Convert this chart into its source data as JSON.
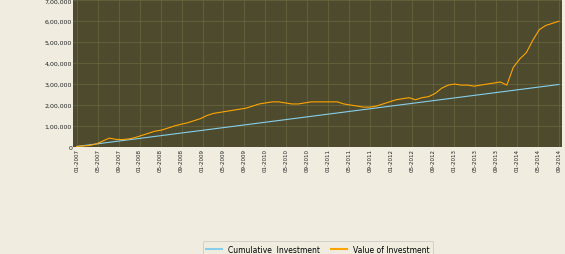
{
  "plot_bg_color": "#4d4a2e",
  "fig_bg_color": "#f0ede0",
  "grid_color": "#6b6840",
  "ylim": [
    0,
    700000
  ],
  "yticks": [
    0,
    100000,
    200000,
    300000,
    400000,
    500000,
    600000,
    700000
  ],
  "ytick_labels": [
    "0",
    "1,00,000",
    "2,00,000",
    "3,00,000",
    "4,00,000",
    "5,00,000",
    "6,00,000",
    "7,00,000"
  ],
  "xtick_labels": [
    "01-2007",
    "05-2007",
    "09-2007",
    "01-2008",
    "05-2008",
    "09-2008",
    "01-2009",
    "05-2009",
    "09-2009",
    "01-2010",
    "05-2010",
    "09-2010",
    "01-2011",
    "05-2011",
    "09-2011",
    "01-2012",
    "05-2012",
    "09-2012",
    "01-2013",
    "05-2013",
    "09-2013",
    "01-2014",
    "05-2014",
    "09-2014"
  ],
  "cumulative_color": "#87ceeb",
  "value_color": "#ffa500",
  "legend_bg": "#f0ede0",
  "cumulative_investment": [
    2000,
    6000,
    10000,
    14000,
    18000,
    22000,
    26000,
    30000,
    34000,
    38000,
    42000,
    46000,
    50000,
    54000,
    58000,
    62000,
    66000,
    70000,
    74000,
    78000,
    82000,
    86000,
    90000,
    94000,
    98000,
    102000,
    106000,
    110000,
    114000,
    118000,
    122000,
    126000,
    130000,
    134000,
    138000,
    142000,
    146000,
    150000,
    154000,
    158000,
    162000,
    166000,
    170000,
    174000,
    178000,
    182000,
    186000,
    190000,
    194000,
    198000,
    202000,
    206000,
    210000,
    214000,
    218000,
    222000,
    226000,
    230000,
    234000,
    238000,
    242000,
    246000,
    250000,
    254000,
    258000,
    262000,
    266000,
    270000,
    274000,
    278000,
    282000,
    286000,
    290000,
    294000,
    298000
  ],
  "value_of_investment": [
    2000,
    4500,
    7000,
    14000,
    28000,
    42000,
    36000,
    35000,
    38000,
    45000,
    55000,
    65000,
    75000,
    80000,
    90000,
    100000,
    108000,
    115000,
    125000,
    135000,
    150000,
    160000,
    165000,
    170000,
    175000,
    180000,
    185000,
    195000,
    205000,
    210000,
    215000,
    215000,
    210000,
    205000,
    205000,
    210000,
    215000,
    215000,
    215000,
    215000,
    215000,
    205000,
    200000,
    195000,
    190000,
    190000,
    195000,
    205000,
    215000,
    225000,
    230000,
    235000,
    225000,
    235000,
    240000,
    255000,
    280000,
    295000,
    300000,
    295000,
    295000,
    290000,
    295000,
    300000,
    305000,
    310000,
    295000,
    380000,
    420000,
    450000,
    510000,
    560000,
    580000,
    590000,
    600000
  ]
}
